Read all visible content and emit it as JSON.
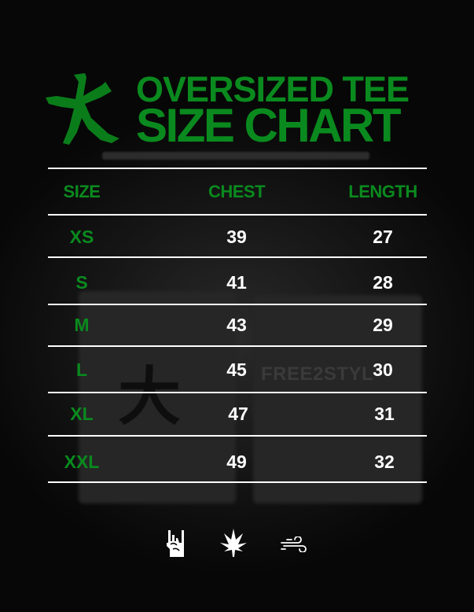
{
  "title": {
    "line1": "OVERSIZED TEE",
    "line2": "SIZE CHART",
    "logo_glyph": "大"
  },
  "background": {
    "text": "FREE2STYL"
  },
  "colors": {
    "accent": "#0a8a1e",
    "text": "#ffffff",
    "background": "#050505"
  },
  "table": {
    "headers": [
      "SIZE",
      "CHEST",
      "LENGTH"
    ],
    "rows": [
      {
        "size": "XS",
        "chest": "39",
        "length": "27"
      },
      {
        "size": "S",
        "chest": "41",
        "length": "28"
      },
      {
        "size": "M",
        "chest": "43",
        "length": "29"
      },
      {
        "size": "L",
        "chest": "45",
        "length": "30"
      },
      {
        "size": "XL",
        "chest": "47",
        "length": "31"
      },
      {
        "size": "XXL",
        "chest": "49",
        "length": "32"
      }
    ]
  },
  "footer_icons": [
    "rock-hand-icon",
    "cannabis-leaf-icon",
    "wind-icon"
  ]
}
